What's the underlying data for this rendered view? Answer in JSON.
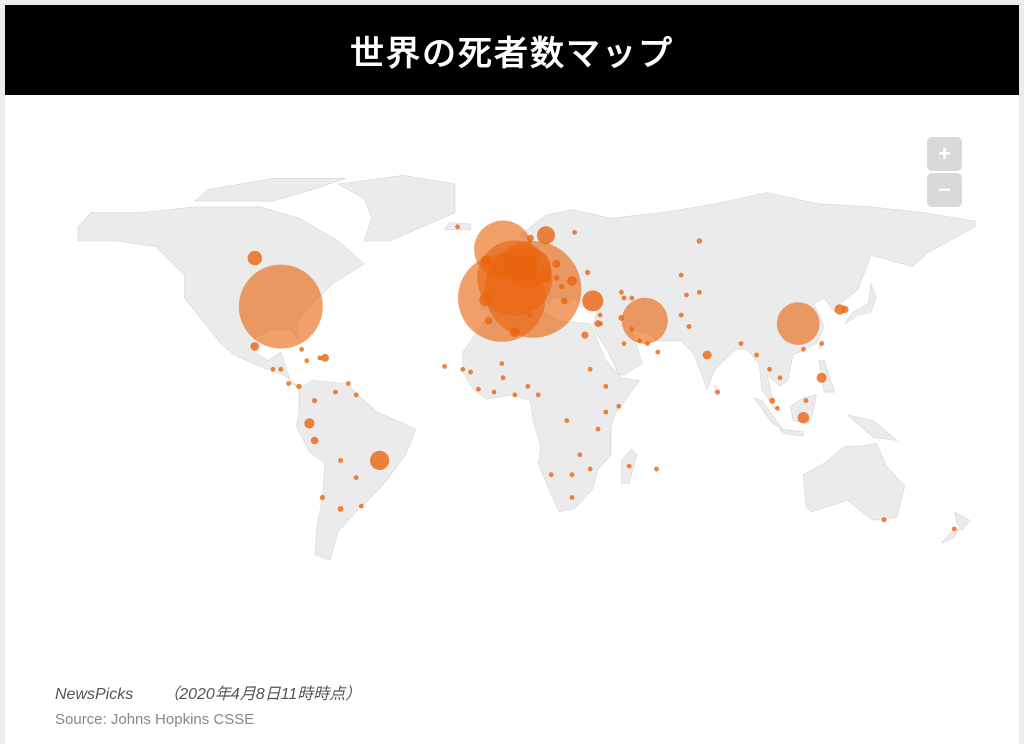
{
  "header": {
    "title": "世界の死者数マップ"
  },
  "zoom_controls": {
    "zoom_in": "+",
    "zoom_out": "−"
  },
  "footer": {
    "brand": "NewsPicks",
    "timestamp": "（2020年4月8日11時時点）",
    "source": "Source: Johns Hopkins CSSE"
  },
  "colors": {
    "land": "#ebebeb",
    "bubble": "#e8650f",
    "header_bg": "#000000"
  },
  "markers": [
    [
      -87,
      37,
      12900
    ],
    [
      -97,
      54,
      381
    ],
    [
      10,
      43,
      17127
    ],
    [
      -2,
      40,
      14045
    ],
    [
      3,
      47,
      10328
    ],
    [
      -1.5,
      57,
      6159
    ],
    [
      53,
      32,
      3872
    ],
    [
      112,
      31,
      3335
    ],
    [
      5.3,
      52.1,
      2101
    ],
    [
      4.5,
      50.8,
      2035
    ],
    [
      10.4,
      51,
      2016
    ],
    [
      8.2,
      46.8,
      821
    ],
    [
      33,
      39,
      812
    ],
    [
      -49,
      -17,
      667
    ],
    [
      15,
      62,
      591
    ],
    [
      -8,
      39.5,
      345
    ],
    [
      14.5,
      47.5,
      273
    ],
    [
      114,
      -2,
      240
    ],
    [
      -8,
      53,
      210
    ],
    [
      10,
      56,
      203
    ],
    [
      -76,
      -4,
      191
    ],
    [
      121,
      12,
      182
    ],
    [
      25,
      46,
      176
    ],
    [
      3,
      28,
      173
    ],
    [
      77,
      20,
      149
    ],
    [
      -97,
      23,
      141
    ],
    [
      -70,
      19,
      118
    ],
    [
      -74,
      -10,
      107
    ],
    [
      19,
      52,
      129
    ],
    [
      130,
      36,
      94
    ],
    [
      9,
      61,
      89
    ],
    [
      15.5,
      49.8,
      88
    ],
    [
      22,
      39,
      81
    ],
    [
      19,
      47,
      58
    ],
    [
      35,
      31,
      86
    ],
    [
      70,
      30,
      45
    ],
    [
      30,
      27,
      94
    ],
    [
      -7,
      32,
      93
    ],
    [
      44,
      33,
      65
    ],
    [
      45,
      24,
      41
    ],
    [
      21,
      44,
      51
    ],
    [
      128,
      36,
      200
    ],
    [
      102,
      4,
      65
    ],
    [
      -64,
      -34,
      60
    ],
    [
      -71,
      -30,
      48
    ],
    [
      -74,
      4,
      50
    ],
    [
      -80,
      9,
      55
    ],
    [
      145,
      -37.8,
      50
    ],
    [
      25,
      -30,
      18
    ],
    [
      74,
      60,
      58
    ],
    [
      31,
      49,
      52
    ],
    [
      26,
      63,
      28
    ],
    [
      35.8,
      34,
      21
    ],
    [
      9,
      34,
      22
    ],
    [
      -1.5,
      12,
      24
    ],
    [
      8,
      9,
      10
    ],
    [
      12,
      6,
      7
    ],
    [
      23,
      -3,
      18
    ],
    [
      38,
      0,
      6
    ],
    [
      57.5,
      -20,
      7
    ],
    [
      -79,
      22,
      11
    ],
    [
      -87,
      15,
      22
    ],
    [
      -66,
      7,
      7
    ],
    [
      -64,
      -17,
      10
    ],
    [
      -58,
      -23,
      5
    ],
    [
      -56,
      -33,
      5
    ],
    [
      101,
      15,
      26
    ],
    [
      90,
      24,
      20
    ],
    [
      81,
      7,
      7
    ],
    [
      67,
      34,
      14
    ],
    [
      48,
      40,
      7
    ],
    [
      45,
      40,
      8
    ],
    [
      54,
      24,
      11
    ],
    [
      104,
      1.3,
      6
    ],
    [
      121,
      24,
      6
    ],
    [
      114,
      22,
      4
    ],
    [
      172,
      -41,
      1
    ],
    [
      -19,
      65,
      6
    ],
    [
      -24,
      16,
      1
    ],
    [
      -5,
      7,
      6
    ],
    [
      -14,
      14,
      5
    ],
    [
      -2,
      17,
      13
    ],
    [
      -17,
      15,
      2
    ],
    [
      -61,
      10,
      8
    ],
    [
      -77,
      18,
      5
    ],
    [
      -72,
      19,
      3
    ],
    [
      -90,
      15,
      3
    ],
    [
      -84,
      10,
      3
    ],
    [
      -58,
      6,
      2
    ],
    [
      38,
      9,
      2
    ],
    [
      32,
      15,
      2
    ],
    [
      28,
      -15,
      3
    ],
    [
      32,
      -20,
      2
    ],
    [
      35,
      -6,
      4
    ],
    [
      47,
      -19,
      1
    ],
    [
      25,
      -22,
      1
    ],
    [
      17,
      -22,
      1
    ],
    [
      3,
      6,
      2
    ],
    [
      -11,
      8,
      1
    ],
    [
      43,
      2,
      1
    ],
    [
      69,
      41,
      3
    ],
    [
      74,
      42,
      5
    ],
    [
      96,
      20,
      3
    ],
    [
      105,
      12,
      1
    ],
    [
      115,
      4,
      1
    ],
    [
      67,
      48,
      6
    ],
    [
      44,
      42,
      4
    ],
    [
      51,
      25,
      6
    ],
    [
      58,
      21,
      2
    ],
    [
      48,
      29,
      1
    ],
    [
      36,
      31,
      7
    ]
  ]
}
